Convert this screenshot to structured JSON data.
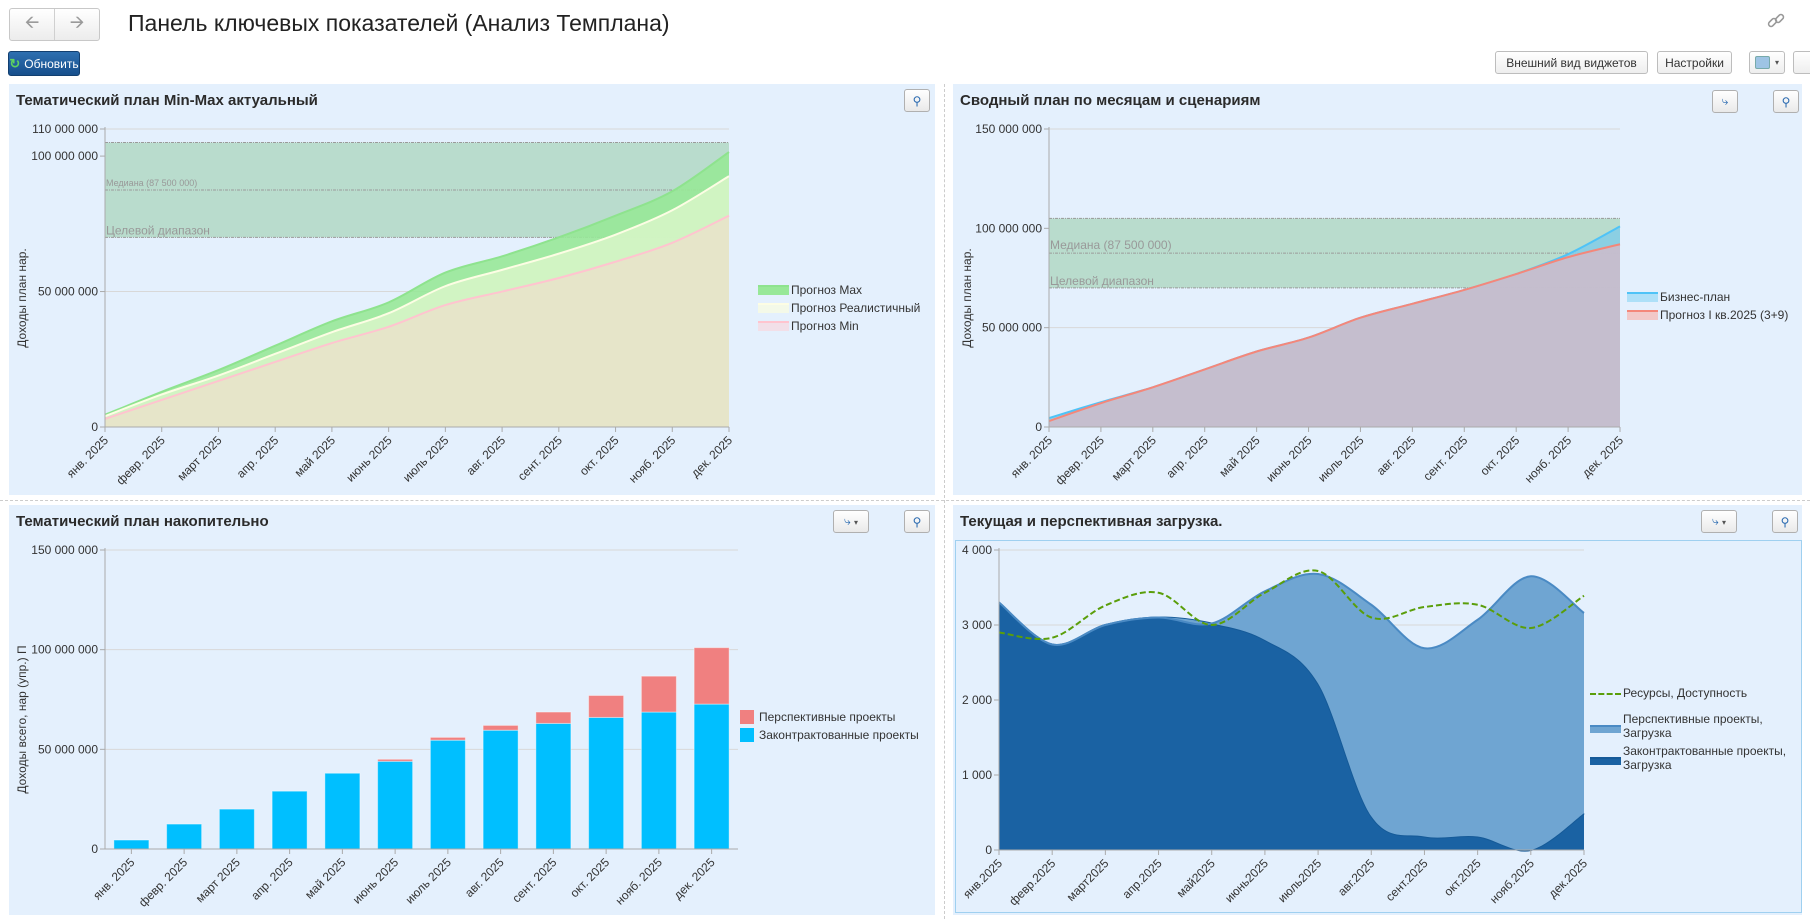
{
  "header": {
    "title": "Панель ключевых показателей (Анализ Темплана)",
    "back_icon": "arrow-left-icon",
    "forward_icon": "arrow-right-icon",
    "link_icon": "link-icon",
    "refresh_label": "Обновить",
    "widgets_view_label": "Внешний вид виджетов",
    "settings_label": "Настройки"
  },
  "months_full": [
    "янв. 2025",
    "февр. 2025",
    "март 2025",
    "апр. 2025",
    "май 2025",
    "июнь 2025",
    "июль 2025",
    "авг. 2025",
    "сент. 2025",
    "окт. 2025",
    "нояб. 2025",
    "дек. 2025"
  ],
  "chart_data": [
    {
      "id": "minmax",
      "type": "area",
      "title": "Тематический план Min-Max актуальный",
      "ylabel": "Доходы план нар.",
      "ylim": [
        0,
        110000000
      ],
      "yticks": [
        {
          "value": 0,
          "label": "0"
        },
        {
          "value": 50000000,
          "label": "50 000 000"
        },
        {
          "value": 100000000,
          "label": "100 000 000"
        },
        {
          "value": 110000000,
          "label": "110 000 000"
        }
      ],
      "categories": [
        "янв. 2025",
        "февр. 2025",
        "март 2025",
        "апр. 2025",
        "май 2025",
        "июнь 2025",
        "июль 2025",
        "авг. 2025",
        "сент. 2025",
        "окт. 2025",
        "нояб. 2025",
        "дек. 2025"
      ],
      "series": [
        {
          "name": "Прогноз Max",
          "color": "#98e898",
          "stroke": "#8ee38e",
          "values": [
            4500000,
            13000000,
            21000000,
            30000000,
            39000000,
            46000000,
            57000000,
            63000000,
            70000000,
            78000000,
            87000000,
            101500000
          ]
        },
        {
          "name": "Прогноз Реалистичный",
          "color": "#d6f5c6",
          "stroke": "#fdfde4",
          "legend_color": "#f4f9e8",
          "values": [
            4000000,
            12000000,
            19000000,
            27000000,
            35000000,
            42000000,
            52000000,
            58000000,
            64000000,
            71000000,
            80000000,
            92600000
          ]
        },
        {
          "name": "Прогноз Min",
          "color": "#e8e3ca",
          "stroke": "#ffc4cf",
          "legend_color": "#f2dfe8",
          "values": [
            3000000,
            10000000,
            17000000,
            24000000,
            31000000,
            37000000,
            45000000,
            50000000,
            55000000,
            61000000,
            68000000,
            78000000
          ]
        }
      ],
      "target_band": {
        "label": "Целевой диапазон",
        "from": 70000000,
        "to": 105000000,
        "median": 87500000,
        "median_label": "Медиана (87 500 000)",
        "color": "#b9dccd"
      },
      "legend": "right",
      "grid": true
    },
    {
      "id": "summary",
      "type": "area",
      "title": "Сводный план по месяцам и сценариям",
      "ylabel": "Доходы план нар.",
      "ylim": [
        0,
        150000000
      ],
      "yticks": [
        {
          "value": 0,
          "label": "0"
        },
        {
          "value": 50000000,
          "label": "50 000 000"
        },
        {
          "value": 100000000,
          "label": "100 000 000"
        },
        {
          "value": 150000000,
          "label": "150 000 000"
        }
      ],
      "categories": [
        "янв. 2025",
        "февр. 2025",
        "март 2025",
        "апр. 2025",
        "май 2025",
        "июнь 2025",
        "июль 2025",
        "авг. 2025",
        "сент. 2025",
        "окт. 2025",
        "нояб. 2025",
        "дек. 2025"
      ],
      "series": [
        {
          "name": "Бизнес-план",
          "color": "#86cde6",
          "stroke": "#4fc3f7",
          "legend_color": "#aee0f8",
          "values": [
            4500000,
            12500000,
            20000000,
            29000000,
            38000000,
            45000000,
            55000000,
            62000000,
            69000000,
            77000000,
            87000000,
            101000000
          ]
        },
        {
          "name": "Прогноз I кв.2025 (3+9)",
          "color": "#cbbbcb",
          "stroke": "#f4877a",
          "legend_color": "#f2c8c8",
          "values": [
            3000000,
            12000000,
            20000000,
            29000000,
            38000000,
            45000000,
            55000000,
            62000000,
            69000000,
            77000000,
            85500000,
            92000000
          ]
        }
      ],
      "target_band": {
        "label": "Целевой диапазон",
        "from": 70000000,
        "to": 105000000,
        "median": 87500000,
        "median_label": "Медиана (87 500 000)",
        "color": "#b9dccd"
      },
      "legend": "right",
      "grid": true
    },
    {
      "id": "cumulative",
      "type": "bar",
      "stacked": true,
      "title": "Тематический план накопительно",
      "ylabel": "Доходы всего, нар  (упр.) П",
      "ylim": [
        0,
        150000000
      ],
      "yticks": [
        {
          "value": 0,
          "label": "0"
        },
        {
          "value": 50000000,
          "label": "50 000 000"
        },
        {
          "value": 100000000,
          "label": "100 000 000"
        },
        {
          "value": 150000000,
          "label": "150 000 000"
        }
      ],
      "categories": [
        "янв. 2025",
        "февр. 2025",
        "март 2025",
        "апр. 2025",
        "май 2025",
        "июнь 2025",
        "июль 2025",
        "авг. 2025",
        "сент. 2025",
        "окт. 2025",
        "нояб. 2025",
        "дек. 2025"
      ],
      "series": [
        {
          "name": "Законтрактованные проекты",
          "color": "#00bfff",
          "values": [
            4500000,
            12500000,
            20000000,
            29000000,
            38000000,
            44000000,
            54600000,
            59600000,
            63000000,
            66000000,
            68700000,
            72700000
          ]
        },
        {
          "name": "Перспективные проекты",
          "color": "#f08080",
          "values": [
            0,
            0,
            0,
            0,
            0,
            1000000,
            1400000,
            2400000,
            5700000,
            11000000,
            18000000,
            28300000
          ]
        }
      ],
      "legend": "right",
      "grid": true
    },
    {
      "id": "load",
      "type": "area",
      "stacked": true,
      "title": "Текущая и перспективная загрузка.",
      "ylabel": "",
      "ylim": [
        0,
        4000
      ],
      "yticks": [
        {
          "value": 0,
          "label": "0"
        },
        {
          "value": 1000,
          "label": "1 000"
        },
        {
          "value": 2000,
          "label": "2 000"
        },
        {
          "value": 3000,
          "label": "3 000"
        },
        {
          "value": 4000,
          "label": "4 000"
        }
      ],
      "categories": [
        "янв.2025",
        "февр.2025",
        "март2025",
        "апр.2025",
        "май2025",
        "июнь2025",
        "июль2025",
        "авг.2025",
        "сент.2025",
        "окт.2025",
        "нояб.2025",
        "дек.2025"
      ],
      "series": [
        {
          "name": "Законтрактованные проекты, Загрузка",
          "color": "#1a62a3",
          "stroke": "#155a98",
          "values": [
            3300,
            2740,
            3000,
            3100,
            3020,
            2800,
            2220,
            450,
            180,
            180,
            0,
            490
          ]
        },
        {
          "name": "Перспективные проекты, Загрузка",
          "color": "#6fa5d2",
          "stroke": "#4a8ac4",
          "values": [
            0,
            0,
            0,
            0,
            0,
            650,
            1460,
            2820,
            2510,
            2890,
            3650,
            2670
          ]
        },
        {
          "name": "Ресурсы, Доступность",
          "type": "line",
          "dashed": true,
          "color": "#5a9e0a",
          "values": [
            2900,
            2830,
            3260,
            3430,
            3000,
            3430,
            3720,
            3100,
            3240,
            3270,
            2960,
            3390
          ]
        }
      ],
      "legend": "right",
      "grid": true
    }
  ]
}
